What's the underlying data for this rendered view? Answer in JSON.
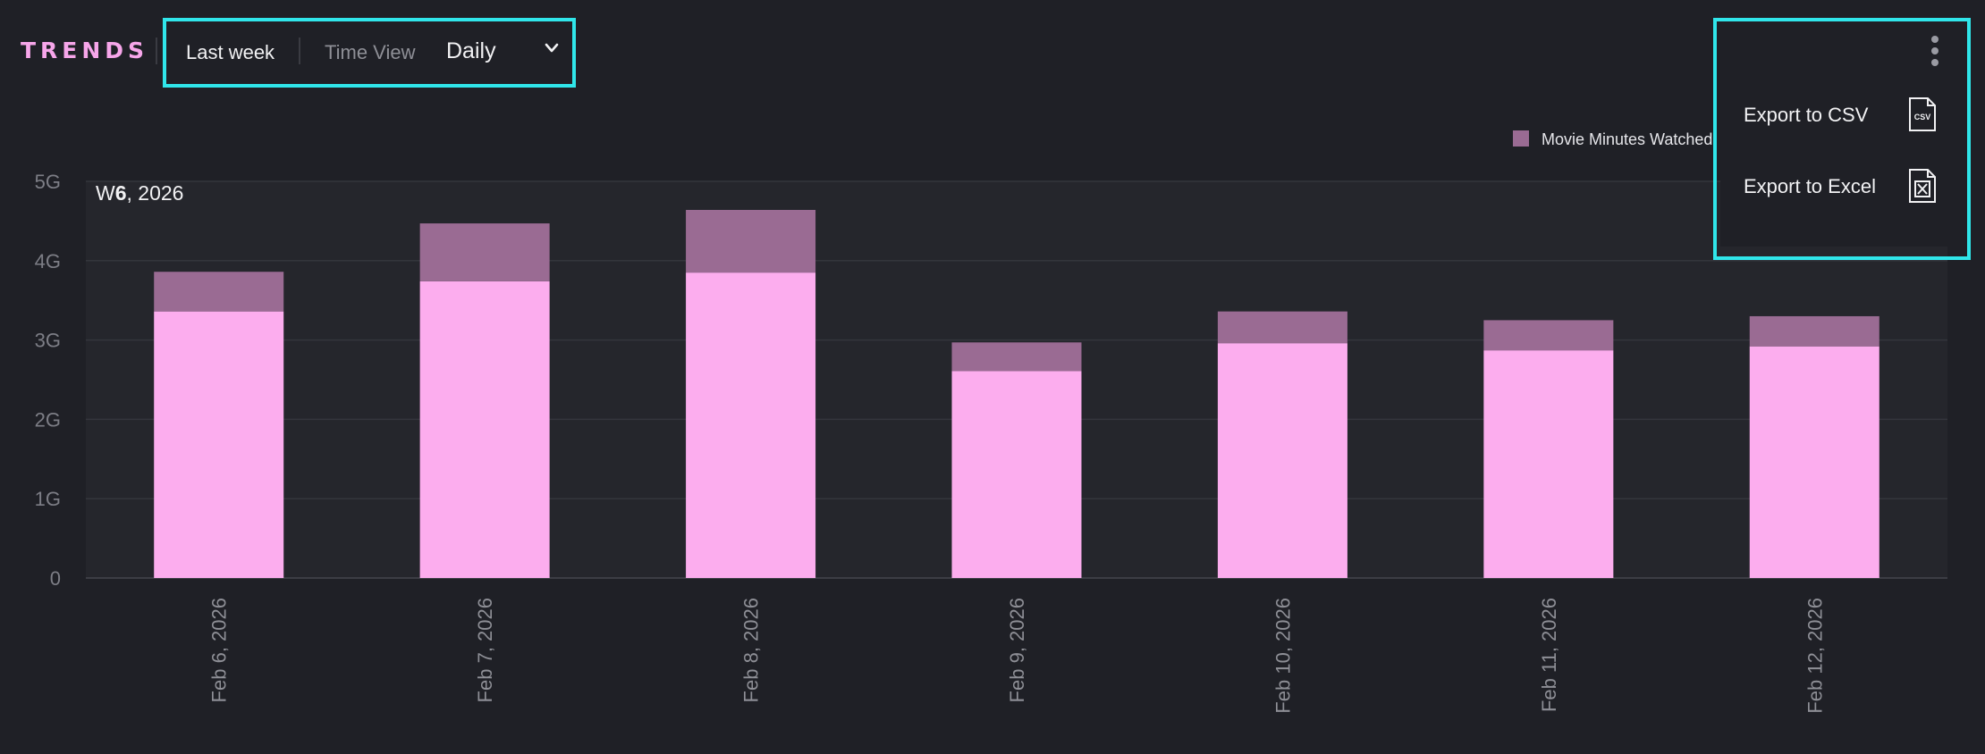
{
  "header": {
    "brand": "TRENDS",
    "range_label": "Last week",
    "time_view_label": "Time View",
    "time_view_value": "Daily"
  },
  "menu": {
    "items": [
      {
        "label": "Export to CSV",
        "icon": "csv-file-icon",
        "icon_text": "CSV"
      },
      {
        "label": "Export to Excel",
        "icon": "excel-file-icon"
      }
    ]
  },
  "colors": {
    "accent": "#f7a6ea",
    "highlight_border": "#30e6ea",
    "bar_base": "#fcadee",
    "bar_top": "#9a6b93"
  },
  "chart_data": {
    "type": "bar",
    "stacked": true,
    "week_label_prefix": "W",
    "week_label_number": "6",
    "week_label_suffix": ", 2026",
    "categories": [
      "Feb 6, 2026",
      "Feb 7, 2026",
      "Feb 8, 2026",
      "Feb 9, 2026",
      "Feb 10, 2026",
      "Feb 11, 2026",
      "Feb 12, 2026"
    ],
    "yticks": [
      {
        "value": 0,
        "label": "0"
      },
      {
        "value": 1,
        "label": "1G"
      },
      {
        "value": 2,
        "label": "2G"
      },
      {
        "value": 3,
        "label": "3G"
      },
      {
        "value": 4,
        "label": "4G"
      },
      {
        "value": 5,
        "label": "5G"
      }
    ],
    "ylim": [
      0,
      5
    ],
    "grid": true,
    "legend_position": "top-right",
    "series": [
      {
        "name": "",
        "color": "#fcadee",
        "values": [
          3.36,
          3.74,
          3.85,
          2.61,
          2.96,
          2.87,
          2.92
        ]
      },
      {
        "name": "Movie Minutes Watched",
        "color": "#9a6b93",
        "values": [
          0.5,
          0.73,
          0.79,
          0.36,
          0.4,
          0.38,
          0.38
        ]
      }
    ]
  }
}
